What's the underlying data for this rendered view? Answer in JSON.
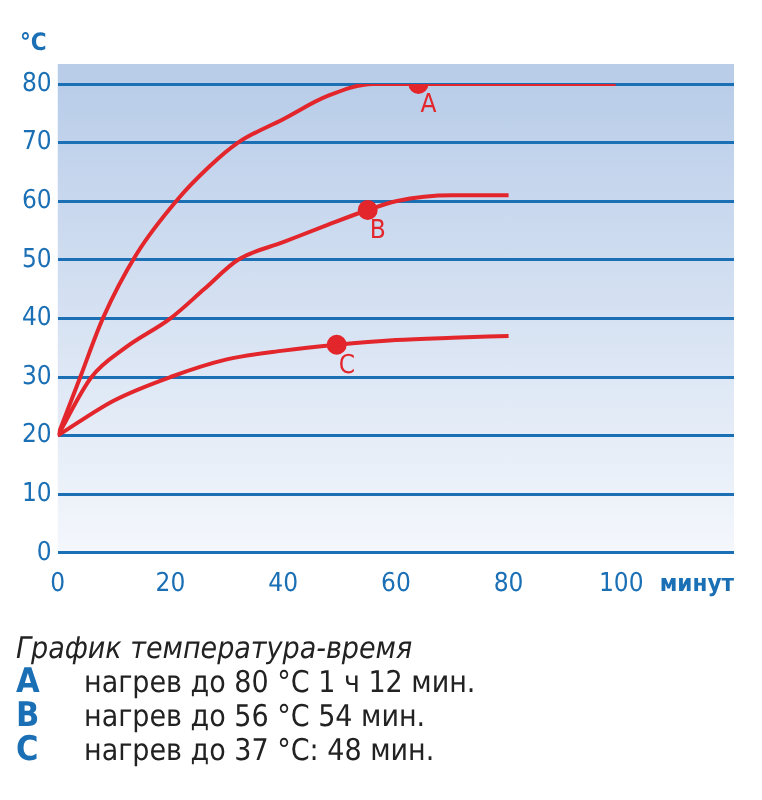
{
  "chart_data": {
    "type": "line",
    "xlabel": "минут",
    "ylabel": "°C",
    "xlim": [
      0,
      120
    ],
    "xticks": [
      0,
      20,
      40,
      60,
      80,
      100
    ],
    "ylim": [
      0,
      80
    ],
    "yticks": [
      0,
      10,
      20,
      30,
      40,
      50,
      60,
      70,
      80
    ],
    "grid": "y",
    "legend": false,
    "marker": "none",
    "line_style": "solid",
    "series": [
      {
        "color": "#e3262b",
        "x": [
          0,
          4,
          8,
          14,
          21,
          27,
          32,
          40,
          48,
          56,
          64,
          80,
          99
        ],
        "values": [
          20,
          30,
          40,
          51,
          60,
          66,
          70,
          74,
          78,
          80,
          80,
          80,
          80
        ]
      },
      {
        "color": "#e3262b",
        "x": [
          0,
          6,
          12,
          20,
          26,
          32,
          40,
          48,
          55,
          60,
          70,
          80
        ],
        "values": [
          20,
          30,
          35,
          40,
          45,
          50,
          53,
          56,
          58.5,
          60,
          61,
          61
        ]
      },
      {
        "color": "#e3262b",
        "x": [
          0,
          10,
          20,
          30,
          40,
          49.5,
          60,
          70,
          80
        ],
        "values": [
          20,
          26,
          30,
          33,
          34.5,
          35.5,
          36.3,
          36.7,
          37
        ]
      },
      {
        "type": "scatter",
        "marker": "circle",
        "color": "#e3262b",
        "x": [
          64,
          55,
          49.5
        ],
        "values": [
          80,
          58.5,
          35.5
        ]
      }
    ],
    "annotations": [
      {
        "text": "A",
        "x": 64,
        "y": 80
      },
      {
        "text": "B",
        "x": 55,
        "y": 58.5
      },
      {
        "text": "C",
        "x": 49.5,
        "y": 35.5
      },
      "График температура-время",
      "A нагрев до 80 °C 1 ч 12 мин.",
      "B нагрев до 56 °C 54 мин.",
      "C нагрев до 37 °C: 48 мин."
    ]
  }
}
